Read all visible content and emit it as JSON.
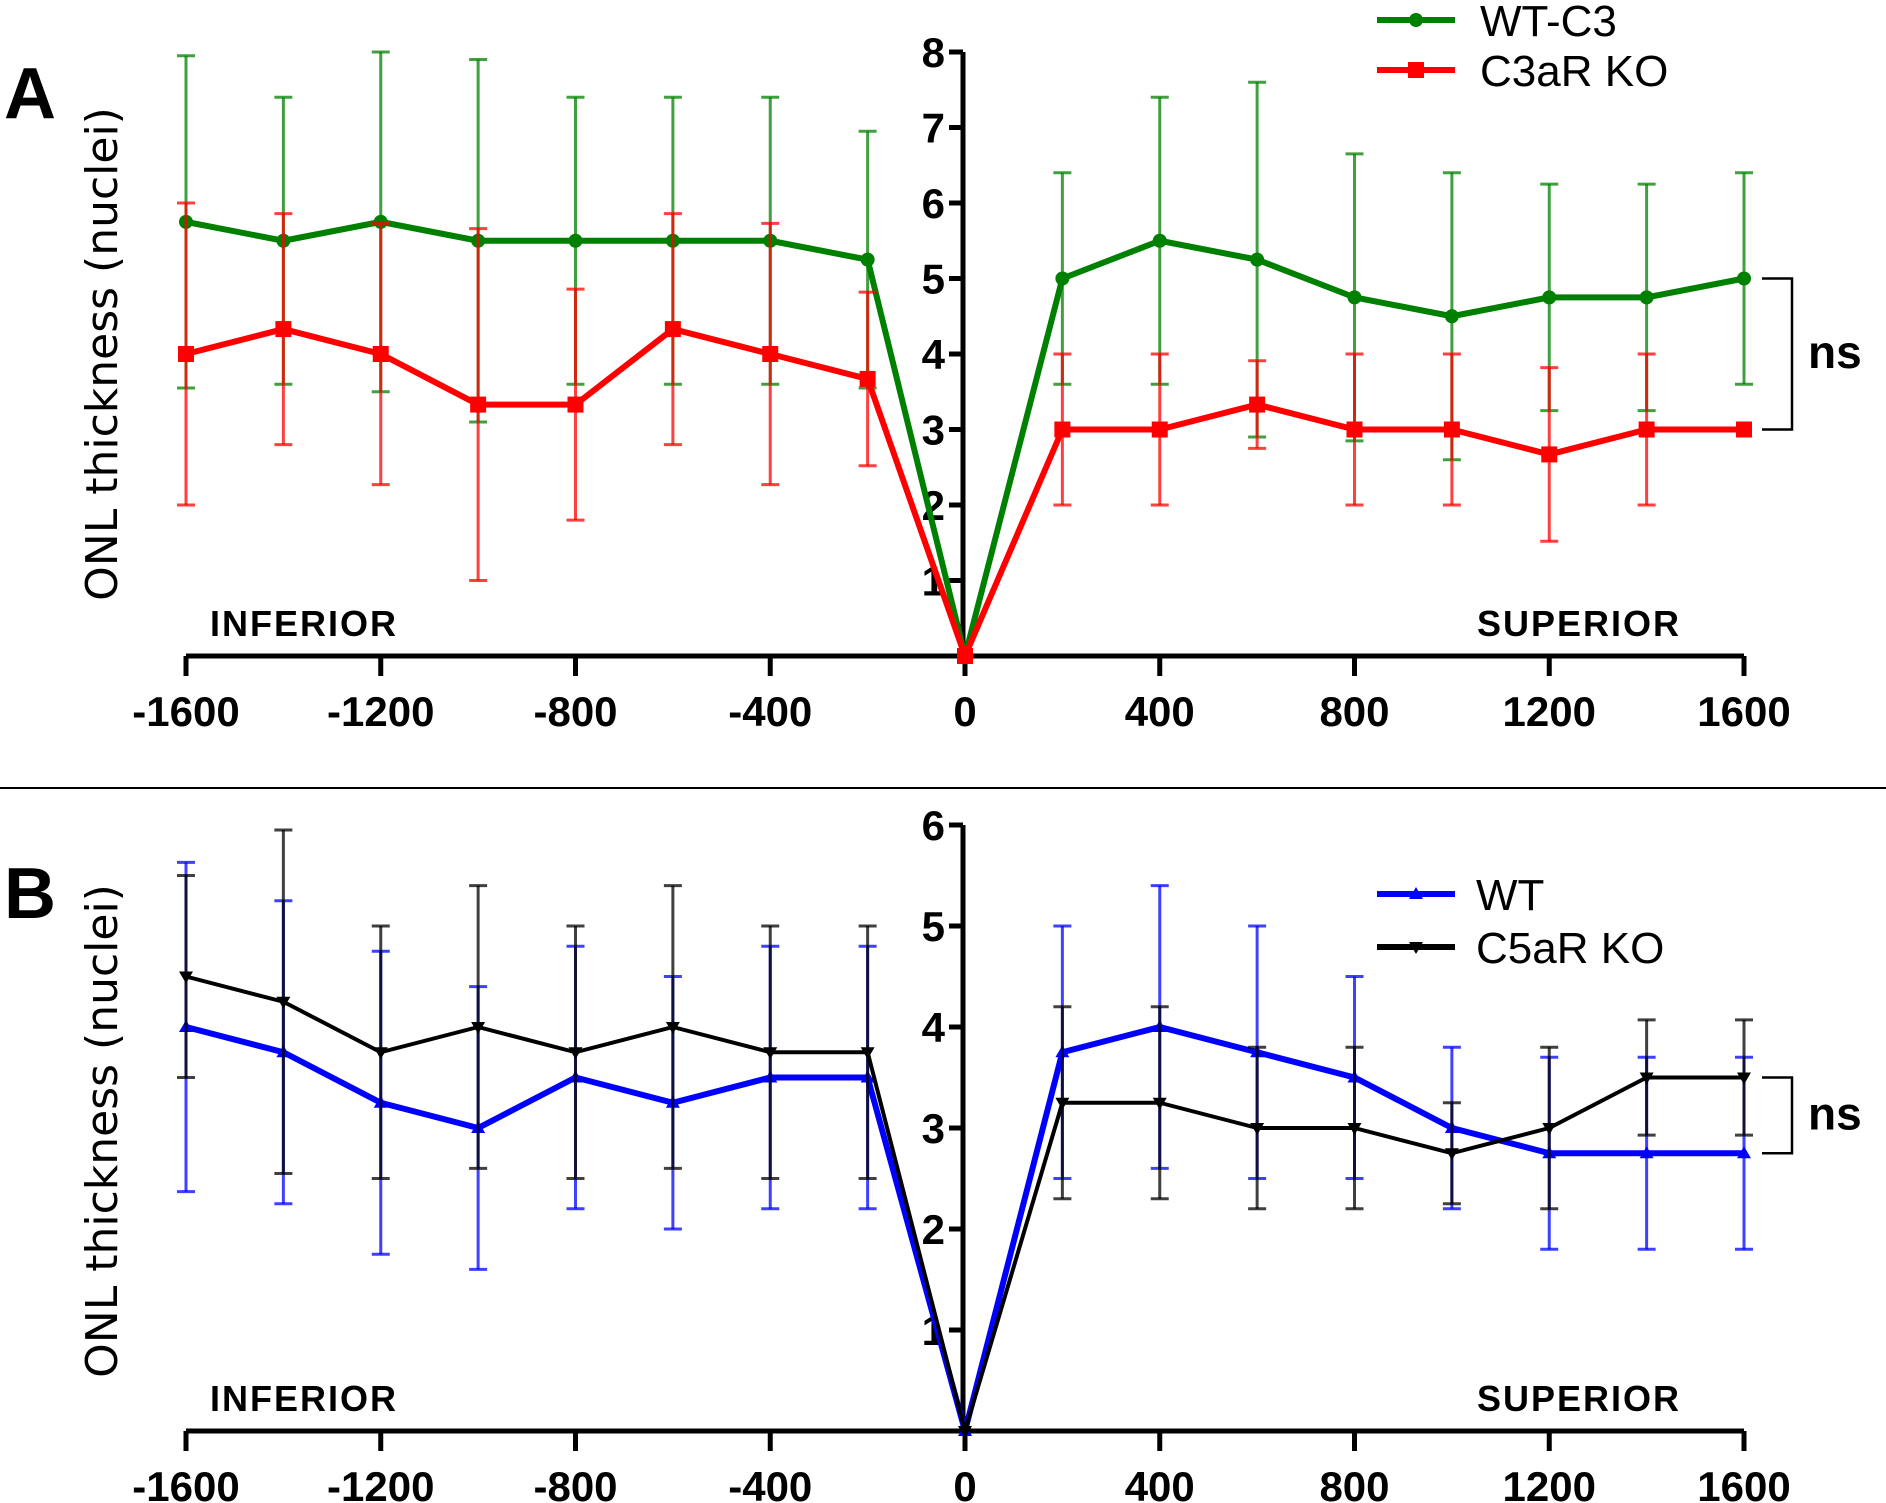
{
  "chart_data": [
    {
      "type": "line",
      "panel_label": "A",
      "ylabel": "ONL thickness (nuclei)",
      "xlabel": "",
      "region_labels": {
        "left": "INFERIOR",
        "right": "SUPERIOR"
      },
      "x": [
        -1600,
        -1400,
        -1200,
        -1000,
        -800,
        -600,
        -400,
        -200,
        0,
        200,
        400,
        600,
        800,
        1000,
        1200,
        1400,
        1600
      ],
      "xticks": [
        -1600,
        -1200,
        -800,
        -400,
        0,
        400,
        800,
        1200,
        1600
      ],
      "xtick_labels": [
        "-1600",
        "-1200",
        "-800",
        "-400",
        "0",
        "400",
        "800",
        "1200",
        "1600"
      ],
      "yticks": [
        1,
        2,
        3,
        4,
        5,
        6,
        7,
        8
      ],
      "ytick_labels": [
        "1",
        "2",
        "3",
        "4",
        "5",
        "6",
        "7",
        "8"
      ],
      "xlim": [
        -1600,
        1600
      ],
      "ylim": [
        0,
        8
      ],
      "grid": false,
      "legend_position": "top-right",
      "series": [
        {
          "name": "WT-C3",
          "color": "#008000",
          "marker": "circle",
          "values": [
            5.75,
            5.5,
            5.75,
            5.5,
            5.5,
            5.5,
            5.5,
            5.25,
            0,
            5.0,
            5.5,
            5.25,
            4.75,
            4.5,
            4.75,
            4.75,
            5.0
          ],
          "errors": [
            2.2,
            1.9,
            2.25,
            2.4,
            1.9,
            1.9,
            1.9,
            1.7,
            0,
            1.4,
            1.9,
            2.35,
            1.9,
            1.9,
            1.5,
            1.5,
            1.4
          ]
        },
        {
          "name": "C3aR KO",
          "color": "#ff0000",
          "marker": "square",
          "values": [
            4.0,
            4.33,
            4.0,
            3.33,
            3.33,
            4.33,
            4.0,
            3.67,
            0,
            3.0,
            3.0,
            3.33,
            3.0,
            3.0,
            2.67,
            3.0,
            3.0
          ],
          "errors": [
            2.0,
            1.53,
            1.73,
            2.33,
            1.53,
            1.53,
            1.73,
            1.15,
            0,
            1.0,
            1.0,
            0.58,
            1.0,
            1.0,
            1.15,
            1.0,
            0
          ]
        }
      ],
      "annotations": [
        {
          "text": "ns",
          "type": "bracket",
          "between": [
            "WT-C3",
            "C3aR KO"
          ],
          "at_x": 1600
        }
      ]
    },
    {
      "type": "line",
      "panel_label": "B",
      "ylabel": "ONL thickness (nuclei)",
      "xlabel": "",
      "region_labels": {
        "left": "INFERIOR",
        "right": "SUPERIOR"
      },
      "x": [
        -1600,
        -1400,
        -1200,
        -1000,
        -800,
        -600,
        -400,
        -200,
        0,
        200,
        400,
        600,
        800,
        1000,
        1200,
        1400,
        1600
      ],
      "xticks": [
        -1600,
        -1200,
        -800,
        -400,
        0,
        400,
        800,
        1200,
        1600
      ],
      "xtick_labels": [
        "-1600",
        "-1200",
        "-800",
        "-400",
        "0",
        "400",
        "800",
        "1200",
        "1600"
      ],
      "yticks": [
        1,
        2,
        3,
        4,
        5,
        6
      ],
      "ytick_labels": [
        "1",
        "2",
        "3",
        "4",
        "5",
        "6"
      ],
      "xlim": [
        -1600,
        1600
      ],
      "ylim": [
        0,
        6
      ],
      "grid": false,
      "legend_position": "top-right",
      "series": [
        {
          "name": "WT",
          "color": "#0000ff",
          "marker": "triangle-up",
          "values": [
            4.0,
            3.75,
            3.25,
            3.0,
            3.5,
            3.25,
            3.5,
            3.5,
            0,
            3.75,
            4.0,
            3.75,
            3.5,
            3.0,
            2.75,
            2.75,
            2.75
          ],
          "errors": [
            1.63,
            1.5,
            1.5,
            1.4,
            1.3,
            1.25,
            1.3,
            1.3,
            0,
            1.25,
            1.4,
            1.25,
            1.0,
            0.8,
            0.95,
            0.95,
            0.95
          ]
        },
        {
          "name": "C5aR KO",
          "color": "#000000",
          "marker": "triangle-down",
          "values": [
            4.5,
            4.25,
            3.75,
            4.0,
            3.75,
            4.0,
            3.75,
            3.75,
            0,
            3.25,
            3.25,
            3.0,
            3.0,
            2.75,
            3.0,
            3.5,
            3.5
          ],
          "errors": [
            1.0,
            1.7,
            1.25,
            1.4,
            1.25,
            1.4,
            1.25,
            1.25,
            0,
            0.95,
            0.95,
            0.8,
            0.8,
            0.5,
            0.8,
            0.57,
            0.57
          ]
        }
      ],
      "annotations": [
        {
          "text": "ns",
          "type": "bracket",
          "between": [
            "WT",
            "C5aR KO"
          ],
          "at_x": 1600
        }
      ]
    }
  ]
}
